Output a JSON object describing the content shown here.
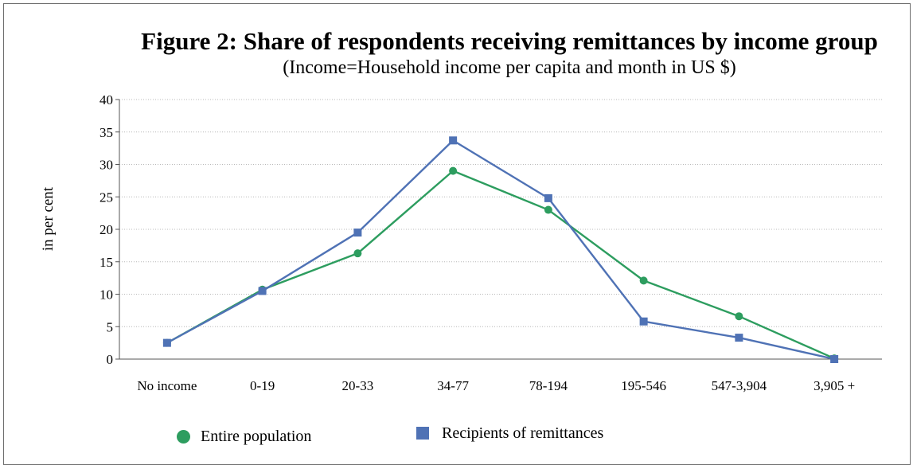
{
  "chart_data": {
    "type": "line",
    "title": "Figure 2: Share of respondents receiving remittances by income group",
    "subtitle": "(Income=Household income per capita and month in US $)",
    "xlabel": "",
    "ylabel": "in per cent",
    "categories": [
      "No income",
      "0-19",
      "20-33",
      "34-77",
      "78-194",
      "195-546",
      "547-3,904",
      "3,905 +"
    ],
    "ylim": [
      0,
      40
    ],
    "yticks": [
      0,
      5,
      10,
      15,
      20,
      25,
      30,
      35,
      40
    ],
    "grid": "horizontal dotted",
    "legend_position": "bottom",
    "series": [
      {
        "name": "Entire population",
        "marker": "circle",
        "color": "#2d9d5f",
        "values": [
          2.5,
          10.7,
          16.3,
          29.0,
          23.0,
          12.1,
          6.6,
          0.1
        ]
      },
      {
        "name": "Recipients of remittances",
        "marker": "square",
        "color": "#4f72b5",
        "values": [
          2.5,
          10.5,
          19.5,
          33.7,
          24.8,
          5.8,
          3.3,
          0.0
        ]
      }
    ]
  }
}
